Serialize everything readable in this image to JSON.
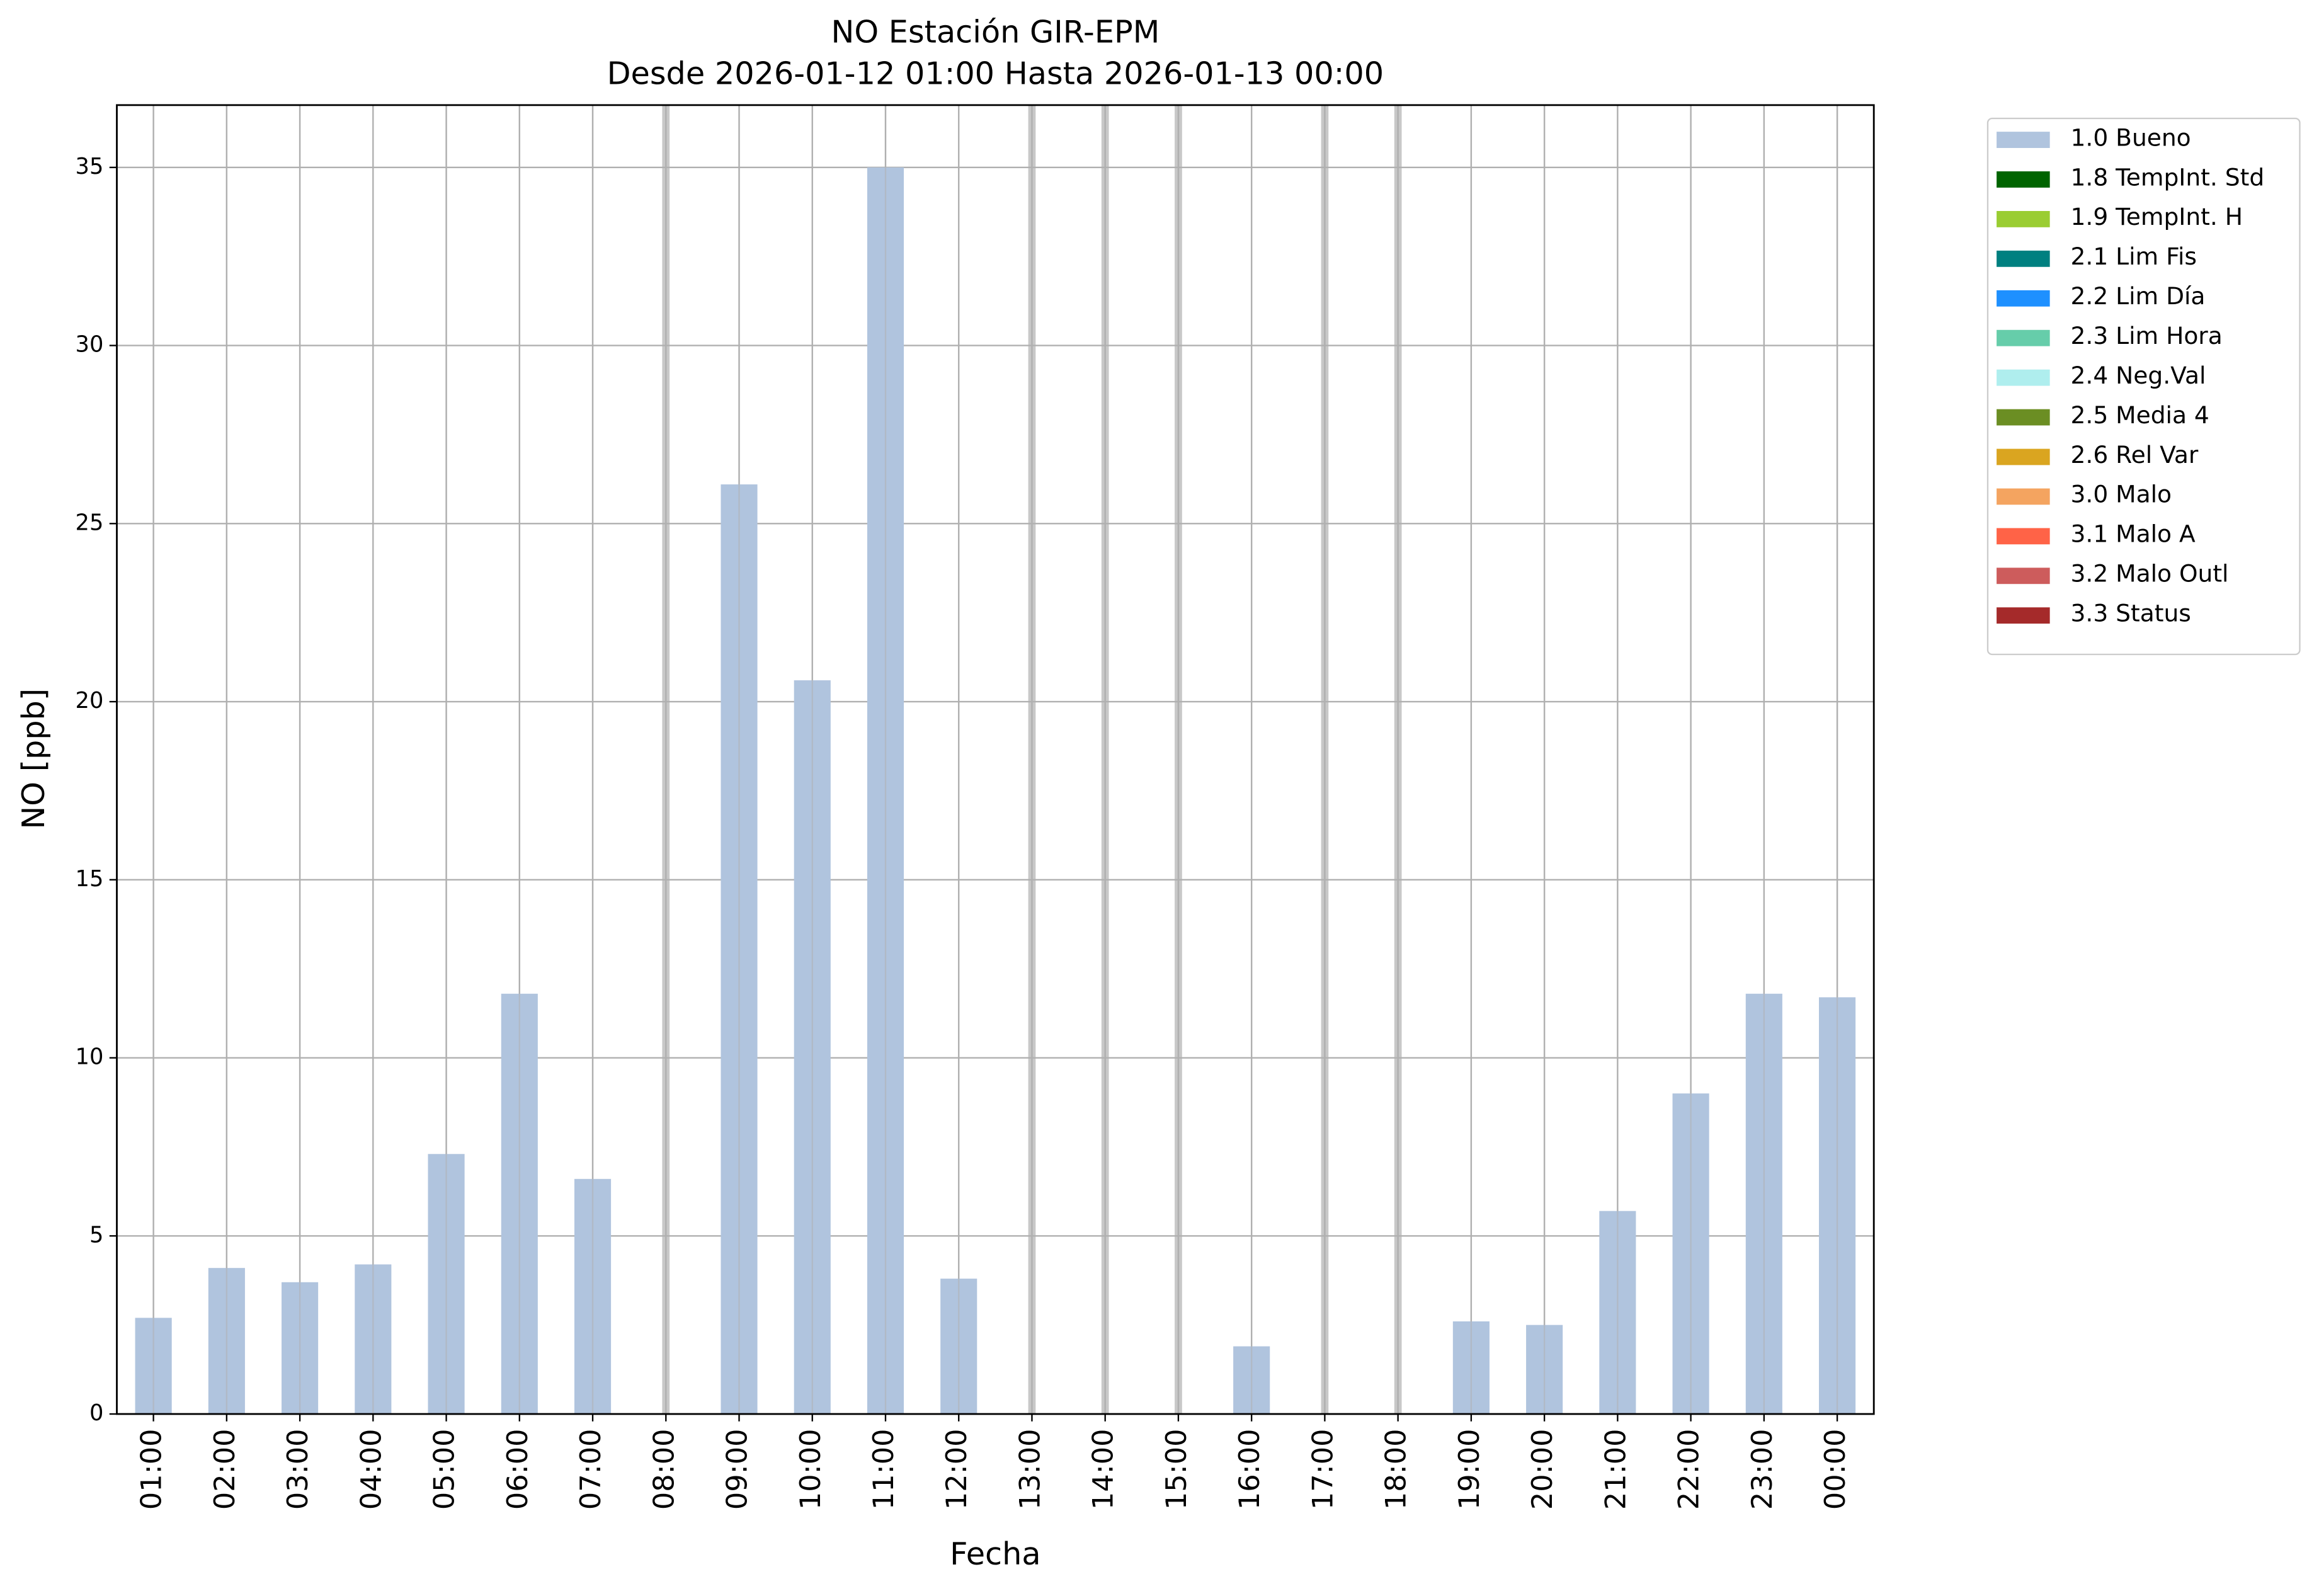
{
  "chart_data": {
    "type": "bar",
    "title": "NO Estación GIR-EPM",
    "subtitle": "Desde 2026-01-12 01:00 Hasta 2026-01-13 00:00",
    "x_label": "Fecha",
    "y_label": "NO [ppb]",
    "categories": [
      "01:00",
      "02:00",
      "03:00",
      "04:00",
      "05:00",
      "06:00",
      "07:00",
      "08:00",
      "09:00",
      "10:00",
      "11:00",
      "12:00",
      "13:00",
      "14:00",
      "15:00",
      "16:00",
      "17:00",
      "18:00",
      "19:00",
      "20:00",
      "21:00",
      "22:00",
      "23:00",
      "00:00"
    ],
    "series": [
      {
        "name": "1.0 Bueno",
        "color": "#b0c4de",
        "values": [
          2.7,
          4.1,
          3.7,
          4.2,
          7.3,
          11.8,
          6.6,
          null,
          26.1,
          20.6,
          35.0,
          3.8,
          null,
          null,
          null,
          1.9,
          null,
          null,
          2.6,
          2.5,
          5.7,
          9.0,
          11.8,
          11.7
        ]
      },
      {
        "name": "1.8 TempInt. Std",
        "color": "#006400",
        "values": [
          null,
          null,
          null,
          null,
          null,
          null,
          null,
          null,
          null,
          null,
          null,
          null,
          null,
          null,
          null,
          null,
          null,
          null,
          null,
          null,
          null,
          null,
          null,
          null
        ]
      },
      {
        "name": "1.9 TempInt. H",
        "color": "#9acd32",
        "values": [
          null,
          null,
          null,
          null,
          null,
          null,
          null,
          null,
          null,
          null,
          null,
          null,
          null,
          null,
          null,
          null,
          null,
          null,
          null,
          null,
          null,
          null,
          null,
          null
        ]
      },
      {
        "name": "2.1 Lim Fis",
        "color": "#008080",
        "values": [
          null,
          null,
          null,
          null,
          null,
          null,
          null,
          null,
          null,
          null,
          null,
          null,
          null,
          null,
          null,
          null,
          null,
          null,
          null,
          null,
          null,
          null,
          null,
          null
        ]
      },
      {
        "name": "2.2 Lim Día",
        "color": "#1e90ff",
        "values": [
          null,
          null,
          null,
          null,
          null,
          null,
          null,
          null,
          null,
          null,
          null,
          null,
          null,
          null,
          null,
          null,
          null,
          null,
          null,
          null,
          null,
          null,
          null,
          null
        ]
      },
      {
        "name": "2.3 Lim Hora",
        "color": "#66cdaa",
        "values": [
          null,
          null,
          null,
          null,
          null,
          null,
          null,
          null,
          null,
          null,
          null,
          null,
          null,
          null,
          null,
          null,
          null,
          null,
          null,
          null,
          null,
          null,
          null,
          null
        ]
      },
      {
        "name": "2.4 Neg.Val",
        "color": "#afeeee",
        "values": [
          null,
          null,
          null,
          null,
          null,
          null,
          null,
          null,
          null,
          null,
          null,
          null,
          null,
          null,
          null,
          null,
          null,
          null,
          null,
          null,
          null,
          null,
          null,
          null
        ]
      },
      {
        "name": "2.5 Media 4",
        "color": "#6b8e23",
        "values": [
          null,
          null,
          null,
          null,
          null,
          null,
          null,
          null,
          null,
          null,
          null,
          null,
          null,
          null,
          null,
          null,
          null,
          null,
          null,
          null,
          null,
          null,
          null,
          null
        ]
      },
      {
        "name": "2.6 Rel Var",
        "color": "#daa520",
        "values": [
          null,
          null,
          null,
          null,
          null,
          null,
          null,
          null,
          null,
          null,
          null,
          null,
          null,
          null,
          null,
          null,
          null,
          null,
          null,
          null,
          null,
          null,
          null,
          null
        ]
      },
      {
        "name": "3.0 Malo",
        "color": "#f4a460",
        "values": [
          null,
          null,
          null,
          null,
          null,
          null,
          null,
          null,
          null,
          null,
          null,
          null,
          null,
          null,
          null,
          null,
          null,
          null,
          null,
          null,
          null,
          null,
          null,
          null
        ]
      },
      {
        "name": "3.1 Malo A",
        "color": "#ff6347",
        "values": [
          null,
          null,
          null,
          null,
          null,
          null,
          null,
          null,
          null,
          null,
          null,
          null,
          null,
          null,
          null,
          null,
          null,
          null,
          null,
          null,
          null,
          null,
          null,
          null
        ]
      },
      {
        "name": "3.2 Malo Outl",
        "color": "#cd5c5c",
        "values": [
          null,
          null,
          null,
          null,
          null,
          null,
          null,
          null,
          null,
          null,
          null,
          null,
          null,
          null,
          null,
          null,
          null,
          null,
          null,
          null,
          null,
          null,
          null,
          null
        ]
      },
      {
        "name": "3.3 Status",
        "color": "#a52a2a",
        "values": [
          null,
          null,
          null,
          null,
          null,
          null,
          null,
          null,
          null,
          null,
          null,
          null,
          null,
          null,
          null,
          null,
          null,
          null,
          null,
          null,
          null,
          null,
          null,
          null
        ]
      }
    ],
    "ylim": [
      0,
      36.75
    ],
    "yticks": [
      0,
      5,
      10,
      15,
      20,
      25,
      30,
      35
    ],
    "grid": true,
    "legend": "outside-upper-right"
  }
}
